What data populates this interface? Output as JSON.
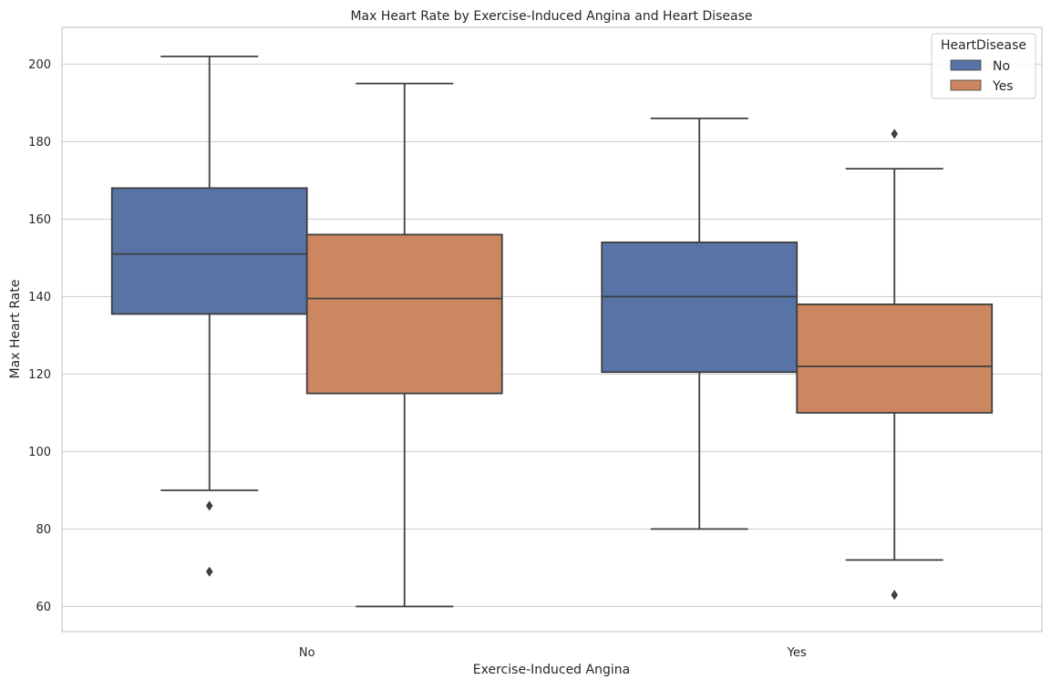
{
  "chart_data": {
    "type": "box",
    "title": "Max Heart Rate by Exercise-Induced Angina and Heart Disease",
    "xlabel": "Exercise-Induced Angina",
    "ylabel": "Max Heart Rate",
    "categories": [
      "No",
      "Yes"
    ],
    "ylim": [
      53.5,
      209.5
    ],
    "yticks": [
      60,
      80,
      100,
      120,
      140,
      160,
      180,
      200
    ],
    "grid": true,
    "legend": {
      "title": "HeartDisease",
      "placement": "top-right",
      "entries": [
        "No",
        "Yes"
      ]
    },
    "series": [
      {
        "name": "No",
        "color": "#5874A6",
        "boxes": [
          {
            "category": "No",
            "whisker_low": 90,
            "q1": 135.5,
            "median": 151,
            "q3": 168,
            "whisker_high": 202,
            "outliers": [
              86,
              69
            ]
          },
          {
            "category": "Yes",
            "whisker_low": 80,
            "q1": 120.5,
            "median": 140,
            "q3": 154,
            "whisker_high": 186,
            "outliers": []
          }
        ]
      },
      {
        "name": "Yes",
        "color": "#CC8761",
        "boxes": [
          {
            "category": "No",
            "whisker_low": 60,
            "q1": 115,
            "median": 139.5,
            "q3": 156,
            "whisker_high": 195,
            "outliers": []
          },
          {
            "category": "Yes",
            "whisker_low": 72,
            "q1": 110,
            "median": 122,
            "q3": 138,
            "whisker_high": 173,
            "outliers": [
              182,
              63
            ]
          }
        ]
      }
    ]
  }
}
